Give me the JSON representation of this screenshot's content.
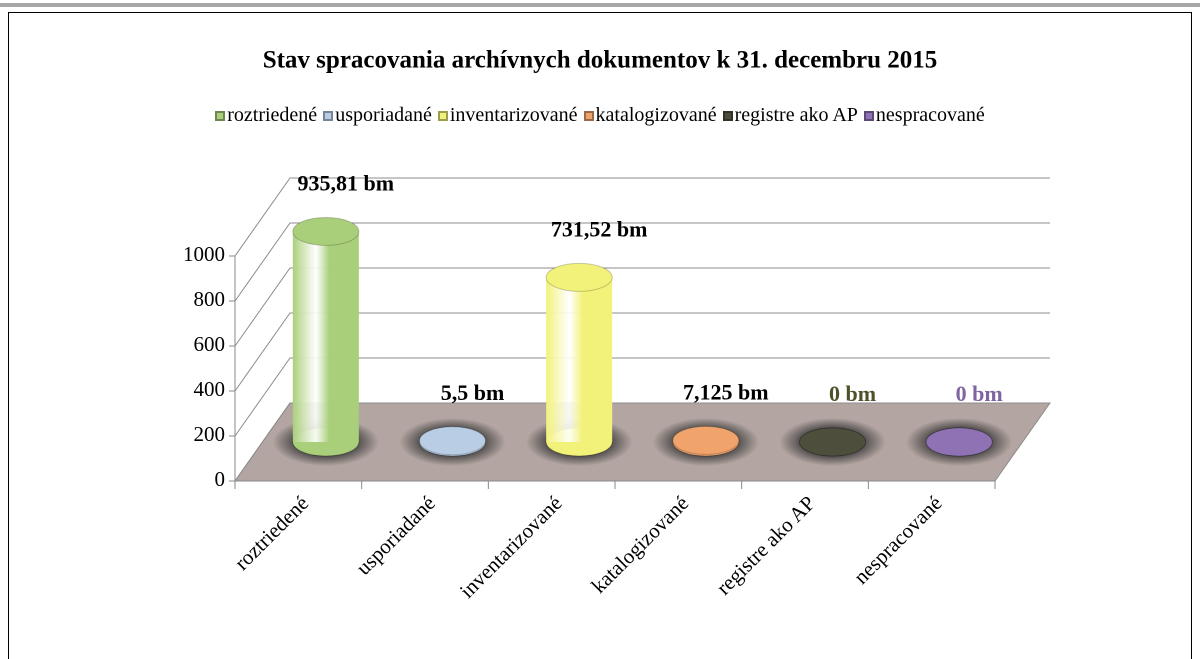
{
  "chart_data": {
    "type": "cylinder",
    "title": "Stav spracovania archívnych dokumentov k 31. decembru 2015",
    "categories": [
      "roztriedené",
      "usporiadané",
      "inventarizované",
      "katalogizované",
      "registre ako AP",
      "nespracované"
    ],
    "values": [
      935.81,
      5.5,
      731.52,
      7.125,
      0,
      0
    ],
    "value_labels": [
      "935,81 bm",
      "5,5 bm",
      "731,52 bm",
      "7,125 bm",
      "0 bm",
      "0 bm"
    ],
    "colors": [
      "#a9cf7a",
      "#b9cde5",
      "#f2f27a",
      "#f0a46c",
      "#4e4e3c",
      "#8e72b4"
    ],
    "value_label_colors": [
      "#000000",
      "#000000",
      "#000000",
      "#000000",
      "#4f5228",
      "#8064a2"
    ],
    "ylim": [
      0,
      1000
    ],
    "yticks": [
      0,
      200,
      400,
      600,
      800,
      1000
    ],
    "grid": true,
    "legend": "top"
  }
}
